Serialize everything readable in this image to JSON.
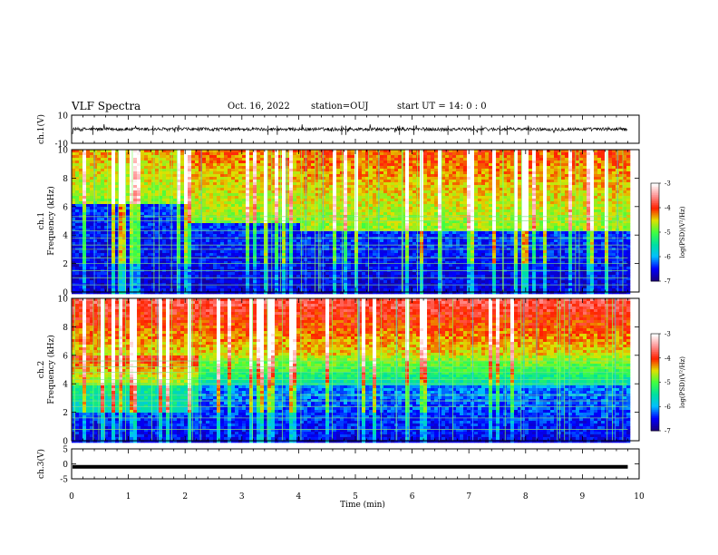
{
  "header": {
    "title": "VLF Spectra",
    "date": "Oct. 16, 2022",
    "station": "station=OUJ",
    "start": "start  UT =  14: 0  : 0"
  },
  "chart_data": [
    {
      "type": "line",
      "panel": "ch1-waveform",
      "ylabel": "ch.1(V)",
      "ylim": [
        -10,
        10
      ],
      "yticks": [
        "10",
        "-10"
      ],
      "xlim": [
        0,
        10
      ],
      "x_end": 9.8,
      "baseline": 0,
      "noise_amplitude": 1.2
    },
    {
      "type": "heatmap",
      "panel": "ch1-spectrogram",
      "ylabel": "ch.1\nFrequency  (kHz)",
      "ylim": [
        0,
        10
      ],
      "yticks": [
        "0",
        "2",
        "4",
        "6",
        "8",
        "10"
      ],
      "xlim": [
        0,
        10
      ],
      "x_end": 9.8,
      "colorbar": {
        "label": "log(PSD)(V²/Hz)",
        "range": [
          -7,
          -3
        ],
        "ticks": [
          "-3",
          "-4",
          "-5",
          "-6",
          "-7"
        ]
      }
    },
    {
      "type": "heatmap",
      "panel": "ch2-spectrogram",
      "ylabel": "ch.2\nFrequency  (kHz)",
      "ylim": [
        0,
        10
      ],
      "yticks": [
        "0",
        "2",
        "4",
        "6",
        "8",
        "10"
      ],
      "xlim": [
        0,
        10
      ],
      "x_end": 9.8,
      "colorbar": {
        "label": "log(PSD)(V²/Hz)",
        "range": [
          -7,
          -3
        ],
        "ticks": [
          "-3",
          "-4",
          "-5",
          "-6",
          "-7"
        ]
      }
    },
    {
      "type": "line",
      "panel": "ch3-waveform",
      "ylabel": "ch.3(V)",
      "ylim": [
        -5,
        5
      ],
      "yticks": [
        "5",
        "0",
        "-5"
      ],
      "xlim": [
        0,
        10
      ],
      "x_end": 9.8,
      "baseline": -1
    }
  ],
  "xaxis": {
    "label": "Time  (min)",
    "ticks": [
      "0",
      "1",
      "2",
      "3",
      "4",
      "5",
      "6",
      "7",
      "8",
      "9",
      "10"
    ]
  },
  "colors": {
    "background": "#ffffff",
    "axis": "#000000",
    "colormap": [
      "#1a0080",
      "#0000ff",
      "#00bfff",
      "#00e0a0",
      "#40ff40",
      "#e0e000",
      "#ff2000",
      "#ff9090",
      "#ffffff"
    ]
  }
}
